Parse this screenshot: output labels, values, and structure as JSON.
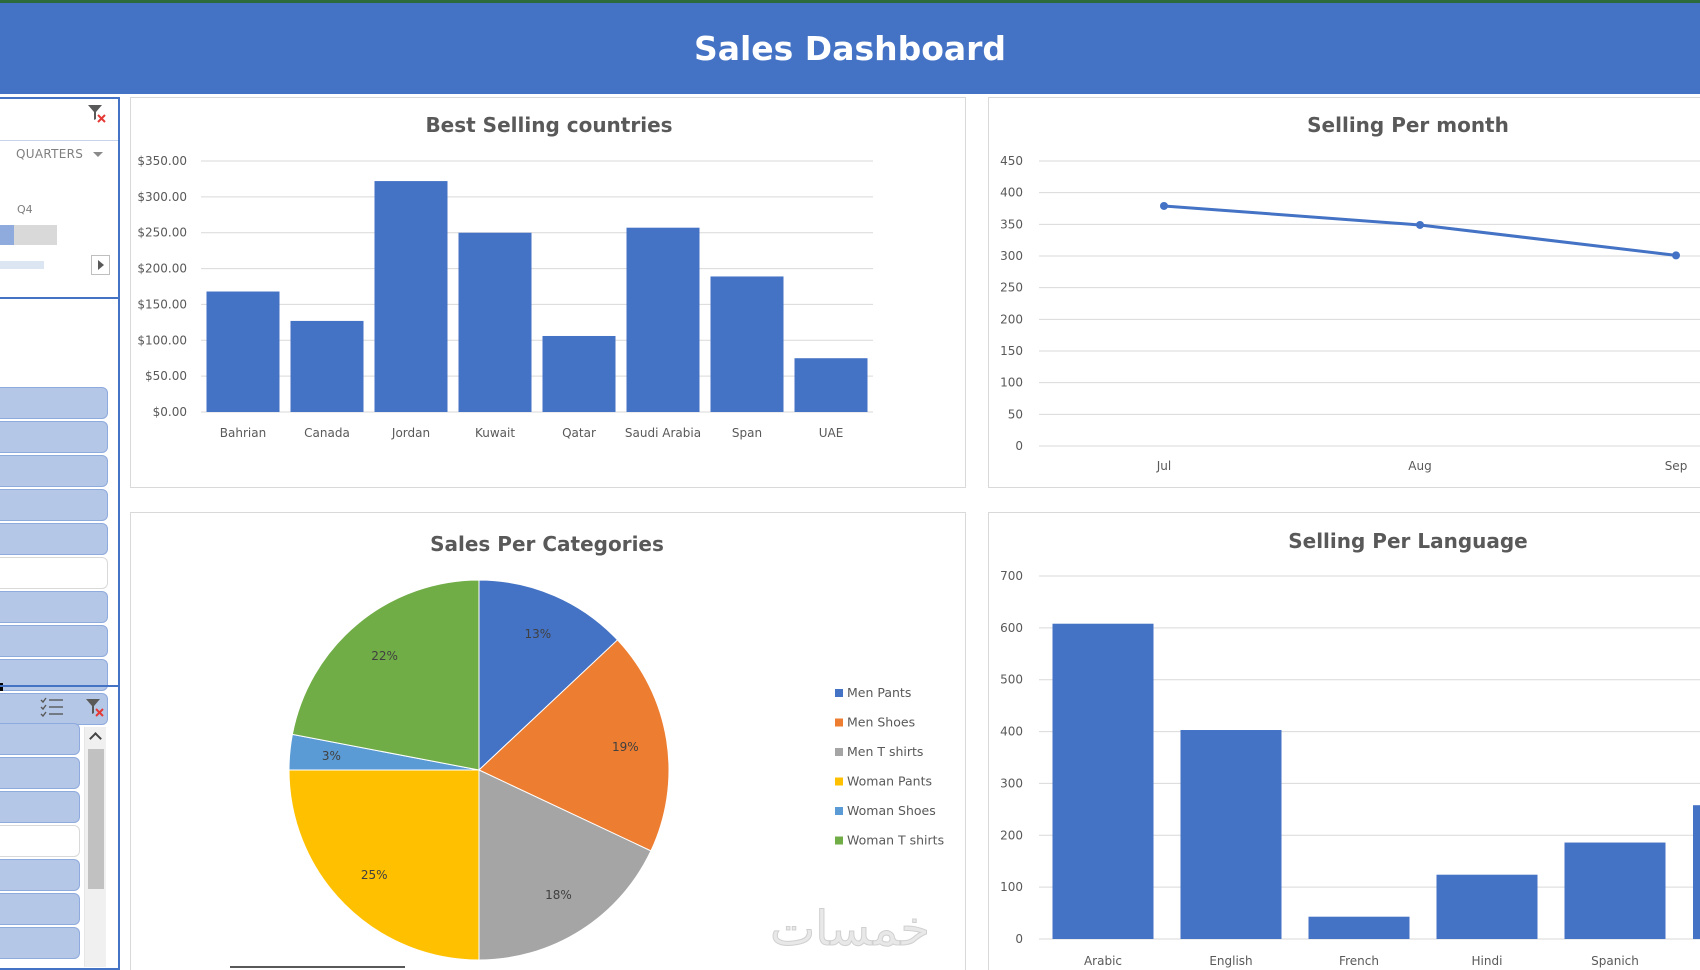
{
  "header": {
    "title": "Sales Dashboard",
    "bg": "#4472c4"
  },
  "slicers": {
    "timeline": {
      "level_label": "QUARTERS",
      "period_label": "Q4",
      "icon": "filter-clear-icon"
    },
    "slicer1": {
      "buttons_selected": [
        true,
        true,
        true,
        true,
        true,
        false,
        true,
        true,
        true,
        true
      ]
    },
    "slicer2": {
      "icons": [
        "multi-select-icon",
        "filter-clear-icon"
      ],
      "buttons_selected": [
        true,
        true,
        true,
        false,
        true,
        true,
        true
      ]
    }
  },
  "charts": {
    "best_selling": {
      "title": "Best Selling countries"
    },
    "per_month": {
      "title": "Selling Per month"
    },
    "categories": {
      "title": "Sales Per Categories"
    },
    "language": {
      "title": "Selling Per Language"
    }
  },
  "chart_data": [
    {
      "type": "bar",
      "title": "Best Selling countries",
      "categories": [
        "Bahrian",
        "Canada",
        "Jordan",
        "Kuwait",
        "Qatar",
        "Saudi Arabia",
        "Span",
        "UAE"
      ],
      "values": [
        168,
        127,
        322,
        250,
        106,
        257,
        189,
        75
      ],
      "ylim": [
        0,
        350
      ],
      "yticks": [
        "$0.00",
        "$50.00",
        "$100.00",
        "$150.00",
        "$200.00",
        "$250.00",
        "$300.00",
        "$350.00"
      ],
      "color": "#4472c4",
      "grid": true
    },
    {
      "type": "line",
      "title": "Selling Per month",
      "x": [
        "Jul",
        "Aug",
        "Sep"
      ],
      "values": [
        379,
        349,
        301
      ],
      "ylim": [
        0,
        450
      ],
      "yticks": [
        "0",
        "50",
        "100",
        "150",
        "200",
        "250",
        "300",
        "350",
        "400",
        "450"
      ],
      "color": "#4472c4",
      "grid": true
    },
    {
      "type": "pie",
      "title": "Sales Per Categories",
      "labels": [
        "Men Pants",
        "Men Shoes",
        "Men T shirts",
        "Woman Pants",
        "Woman Shoes",
        "Woman T shirts"
      ],
      "values": [
        13,
        19,
        18,
        25,
        3,
        22
      ],
      "display_labels": [
        "13%",
        "19%",
        "18%",
        "25%",
        "3%",
        "22%"
      ],
      "colors": [
        "#4472c4",
        "#ed7d31",
        "#a5a5a5",
        "#ffc000",
        "#5b9bd5",
        "#70ad47"
      ],
      "legend": "right"
    },
    {
      "type": "bar",
      "title": "Selling Per Language",
      "categories": [
        "Arabic",
        "English",
        "French",
        "Hindi",
        "Spanich"
      ],
      "values": [
        608,
        403,
        43,
        124,
        186
      ],
      "ylim": [
        0,
        700
      ],
      "yticks": [
        "0",
        "100",
        "200",
        "300",
        "400",
        "500",
        "600",
        "700"
      ],
      "color": "#4472c4",
      "grid": true
    }
  ],
  "watermark": {
    "text": "خمسات"
  }
}
